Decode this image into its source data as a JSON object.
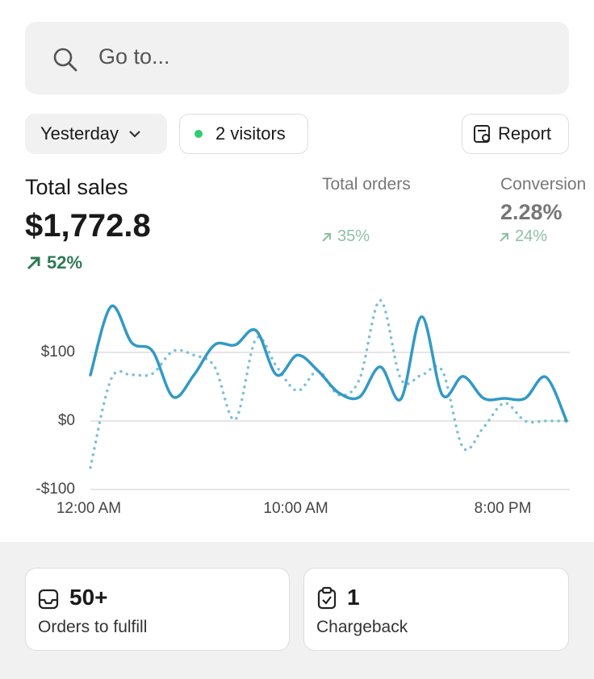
{
  "search": {
    "placeholder": "Go to..."
  },
  "filters": {
    "period": "Yesterday",
    "visitors": "2 visitors",
    "report": "Report"
  },
  "metrics": [
    {
      "label": "Total sales",
      "value": "$1,772.8",
      "change": "52%"
    },
    {
      "label": "Total orders",
      "change": "35%"
    },
    {
      "label": "Conversion",
      "value": "2.28%",
      "change": "24%"
    }
  ],
  "chart_data": {
    "type": "line",
    "x": [
      0,
      1,
      2,
      3,
      4,
      5,
      6,
      7,
      8,
      9,
      10,
      11,
      12,
      13,
      14,
      15,
      16,
      17,
      18,
      19,
      20,
      21,
      22,
      23
    ],
    "xlim": [
      0,
      23
    ],
    "xticks": [
      {
        "value": 0,
        "label": "12:00 AM"
      },
      {
        "value": 10,
        "label": "10:00 AM"
      },
      {
        "value": 20,
        "label": "8:00 PM"
      }
    ],
    "ylim": [
      -100,
      200
    ],
    "yticks": [
      {
        "value": -100,
        "label": "-$100"
      },
      {
        "value": 0,
        "label": "$0"
      },
      {
        "value": 100,
        "label": "$100"
      }
    ],
    "grid": true,
    "series": [
      {
        "color": "#3399c6",
        "style": "solid",
        "values": [
          67,
          167,
          114,
          102,
          35,
          67,
          111,
          111,
          132,
          67,
          96,
          73,
          41,
          35,
          79,
          32,
          152,
          38,
          65,
          33,
          33,
          33,
          64,
          0
        ]
      },
      {
        "color": "#7dbfdc",
        "style": "dotted",
        "values": [
          -68,
          61,
          67,
          69,
          102,
          96,
          79,
          2,
          120,
          79,
          44,
          73,
          38,
          61,
          176,
          61,
          67,
          73,
          -39,
          -9,
          26,
          0,
          0,
          0
        ]
      }
    ]
  },
  "cards": [
    {
      "value": "50+",
      "label": "Orders to fulfill"
    },
    {
      "value": "1",
      "label": "Chargeback"
    }
  ]
}
